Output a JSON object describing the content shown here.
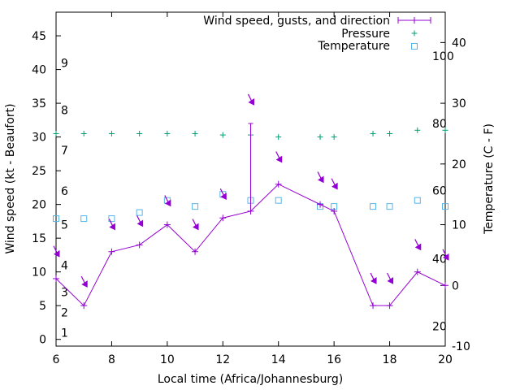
{
  "chart_data": {
    "type": "line",
    "xlabel": "Local time (Africa/Johannesburg)",
    "ylabel": "Wind speed (kt - Beaufort)",
    "y2label": "Temperature (C - F)",
    "xlim": [
      6,
      20
    ],
    "ylim": [
      -1,
      48.5
    ],
    "y2lim": [
      -10,
      45
    ],
    "x_ticks": [
      "6",
      "8",
      "10",
      "12",
      "14",
      "16",
      "18",
      "20"
    ],
    "y_ticks": [
      "0",
      "5",
      "10",
      "15",
      "20",
      "25",
      "30",
      "35",
      "40",
      "45"
    ],
    "y2_ticks": [
      "-10",
      "0",
      "10",
      "20",
      "30",
      "40"
    ],
    "beaufort_labels": [
      {
        "label": "1",
        "y": 1
      },
      {
        "label": "2",
        "y": 4
      },
      {
        "label": "3",
        "y": 7
      },
      {
        "label": "4",
        "y": 11
      },
      {
        "label": "5",
        "y": 17
      },
      {
        "label": "6",
        "y": 22
      },
      {
        "label": "7",
        "y": 28
      },
      {
        "label": "8",
        "y": 34
      },
      {
        "label": "9",
        "y": 41
      }
    ],
    "fahrenheit_labels": [
      {
        "label": "20",
        "temp": -6.7
      },
      {
        "label": "40",
        "temp": 4.4
      },
      {
        "label": "60",
        "temp": 15.6
      },
      {
        "label": "80",
        "temp": 26.7
      },
      {
        "label": "100",
        "temp": 37.8
      }
    ],
    "legend_position": "top-right",
    "series": [
      {
        "name": "Wind speed, gusts, and direction",
        "style": "line-points-errorbar",
        "color": "#9400d3",
        "x": [
          6,
          7,
          8,
          9,
          10,
          11,
          12,
          13,
          14,
          15.5,
          16,
          17.4,
          18,
          19,
          20
        ],
        "y": [
          9,
          5,
          13,
          14,
          17,
          13,
          18,
          19,
          23,
          20,
          19,
          5,
          5,
          10,
          8
        ],
        "gust": [
          null,
          null,
          null,
          null,
          null,
          null,
          null,
          32,
          null,
          null,
          null,
          null,
          null,
          null,
          null
        ],
        "direction_arrows": [
          {
            "x": 6,
            "y": 13
          },
          {
            "x": 7,
            "y": 8.5
          },
          {
            "x": 8,
            "y": 17
          },
          {
            "x": 9,
            "y": 17.5
          },
          {
            "x": 10,
            "y": 20.5
          },
          {
            "x": 11,
            "y": 17
          },
          {
            "x": 12,
            "y": 21.5
          },
          {
            "x": 13,
            "y": 35.5
          },
          {
            "x": 14,
            "y": 27
          },
          {
            "x": 15.5,
            "y": 24
          },
          {
            "x": 16,
            "y": 23
          },
          {
            "x": 17.4,
            "y": 9
          },
          {
            "x": 18,
            "y": 9
          },
          {
            "x": 19,
            "y": 14
          },
          {
            "x": 20,
            "y": 12.5
          }
        ]
      },
      {
        "name": "Pressure",
        "style": "points-plus",
        "color": "#009e73",
        "x": [
          6,
          7,
          8,
          9,
          10,
          11,
          12,
          13,
          14,
          15.5,
          16,
          17.4,
          18,
          19,
          20
        ],
        "y": [
          30.5,
          30.5,
          30.5,
          30.5,
          30.5,
          30.5,
          30.3,
          30.3,
          30,
          30,
          30,
          30.5,
          30.5,
          31,
          31
        ]
      },
      {
        "name": "Temperature",
        "style": "points-square",
        "color": "#56b4e9",
        "x": [
          6,
          7,
          8,
          9,
          10,
          11,
          12,
          13,
          14,
          15.5,
          16,
          17.4,
          18,
          19,
          20
        ],
        "y": [
          11,
          11,
          11,
          12,
          14,
          13,
          15,
          14,
          14,
          13,
          13,
          13,
          13,
          14,
          13
        ]
      }
    ]
  }
}
